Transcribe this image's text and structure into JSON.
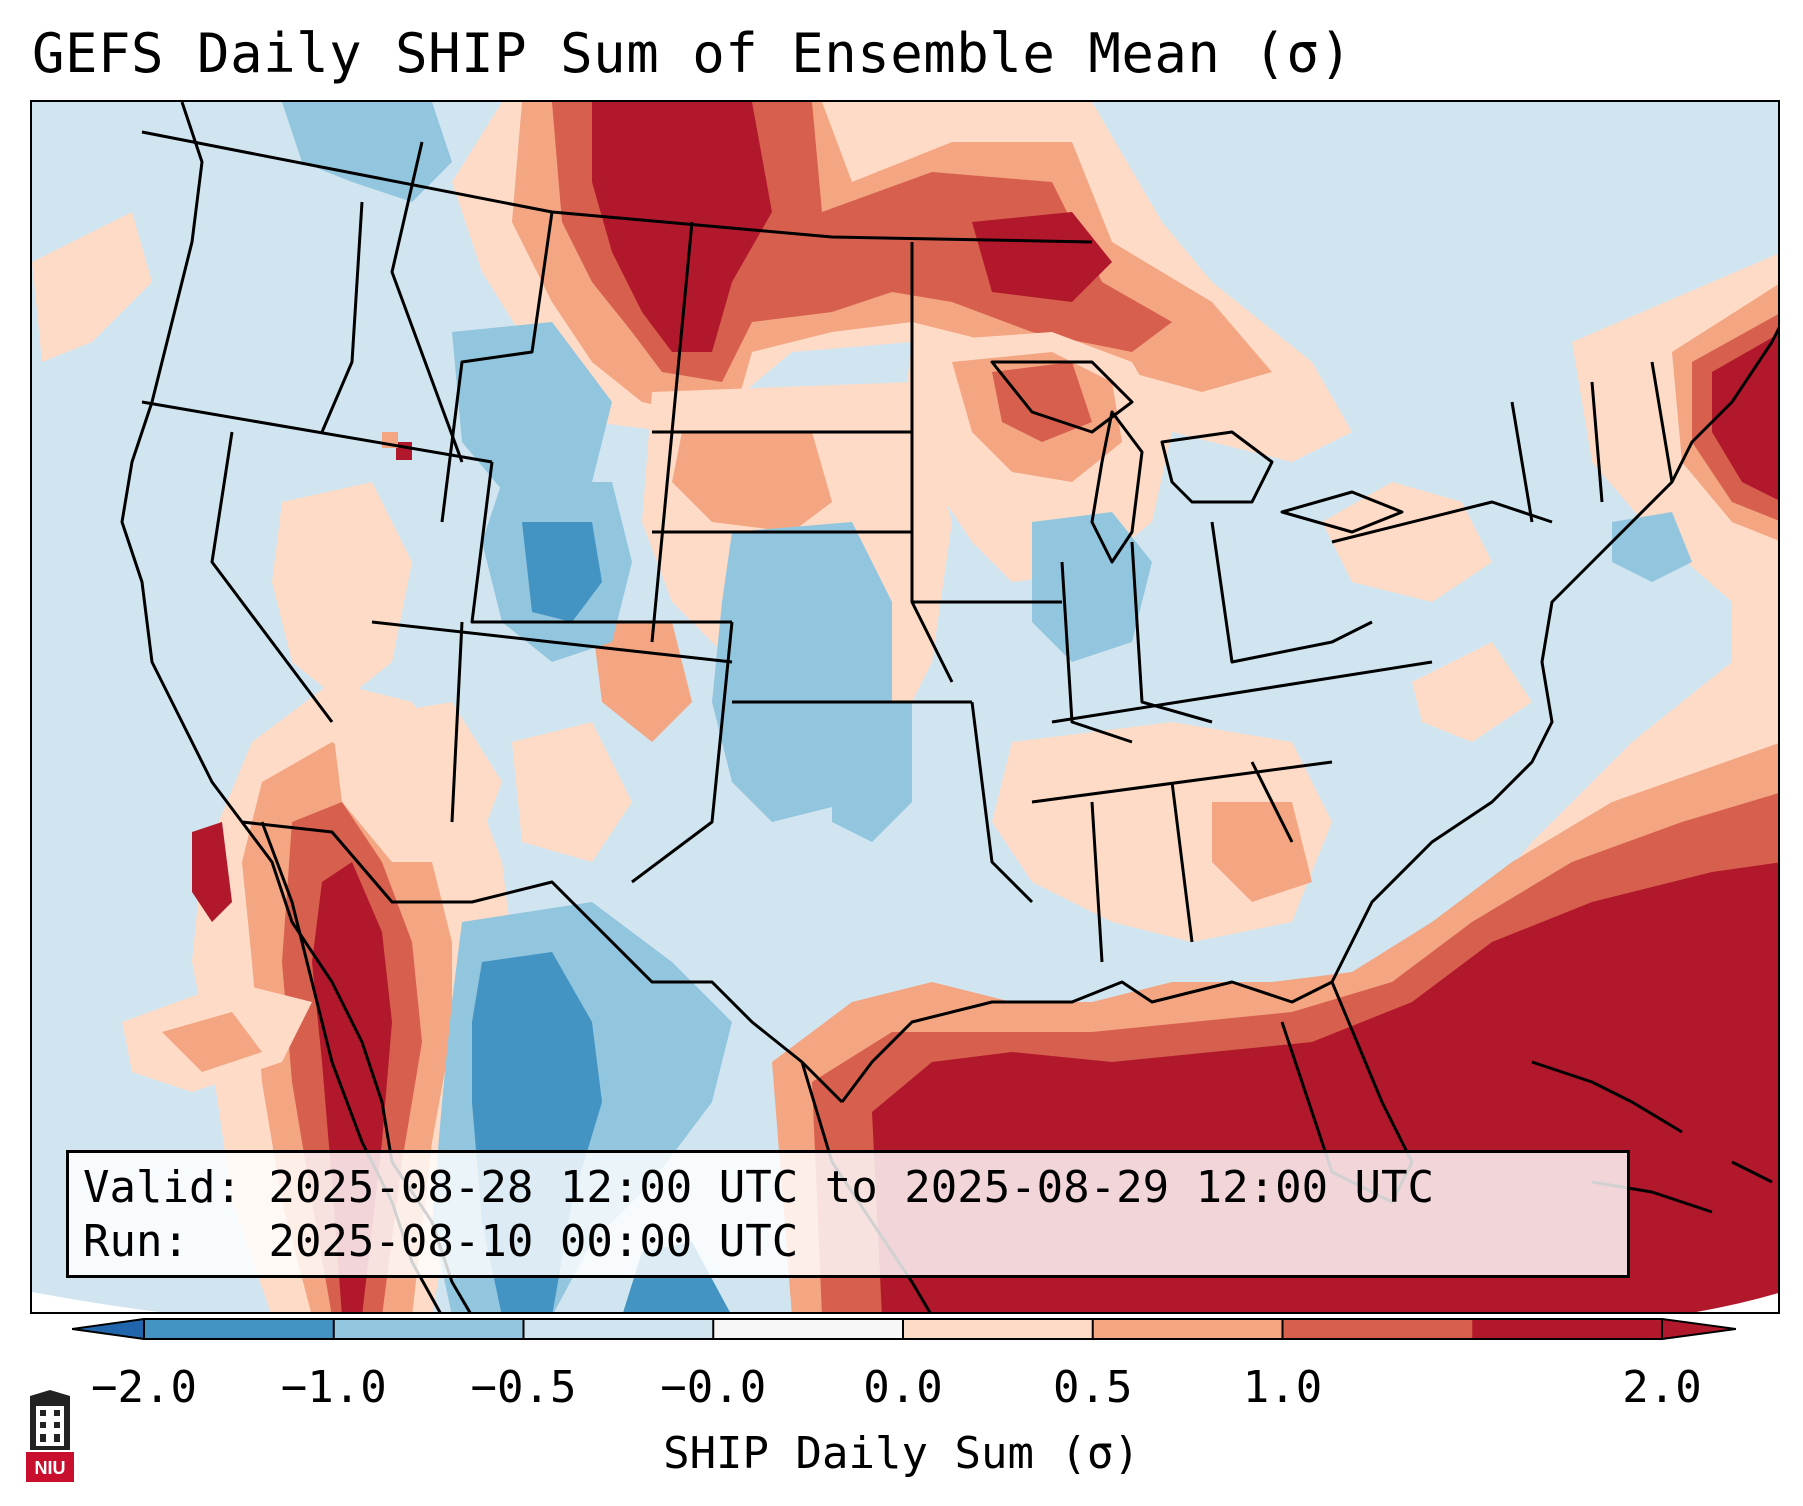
{
  "title": "GEFS Daily SHIP Sum of Ensemble Mean (σ)",
  "info": {
    "valid_label": "Valid:",
    "valid_value": "2025-08-28 12:00 UTC to 2025-08-29 12:00 UTC",
    "run_label": "Run:",
    "run_value": "2025-08-10 00:00 UTC"
  },
  "colorbar": {
    "label": "SHIP Daily Sum (σ)",
    "ticks": [
      "−2.0",
      "−1.0",
      "−0.5",
      "−0.0",
      "0.0",
      "0.5",
      "1.0",
      "2.0"
    ],
    "colors": [
      "#4393c3",
      "#92c5de",
      "#d1e5f0",
      "#f7f7f7",
      "#fddbc7",
      "#f4a582",
      "#d6604d",
      "#b2182b"
    ],
    "under_color": "#2166ac",
    "over_color": "#b2182b"
  },
  "logo_text": "NIU"
}
